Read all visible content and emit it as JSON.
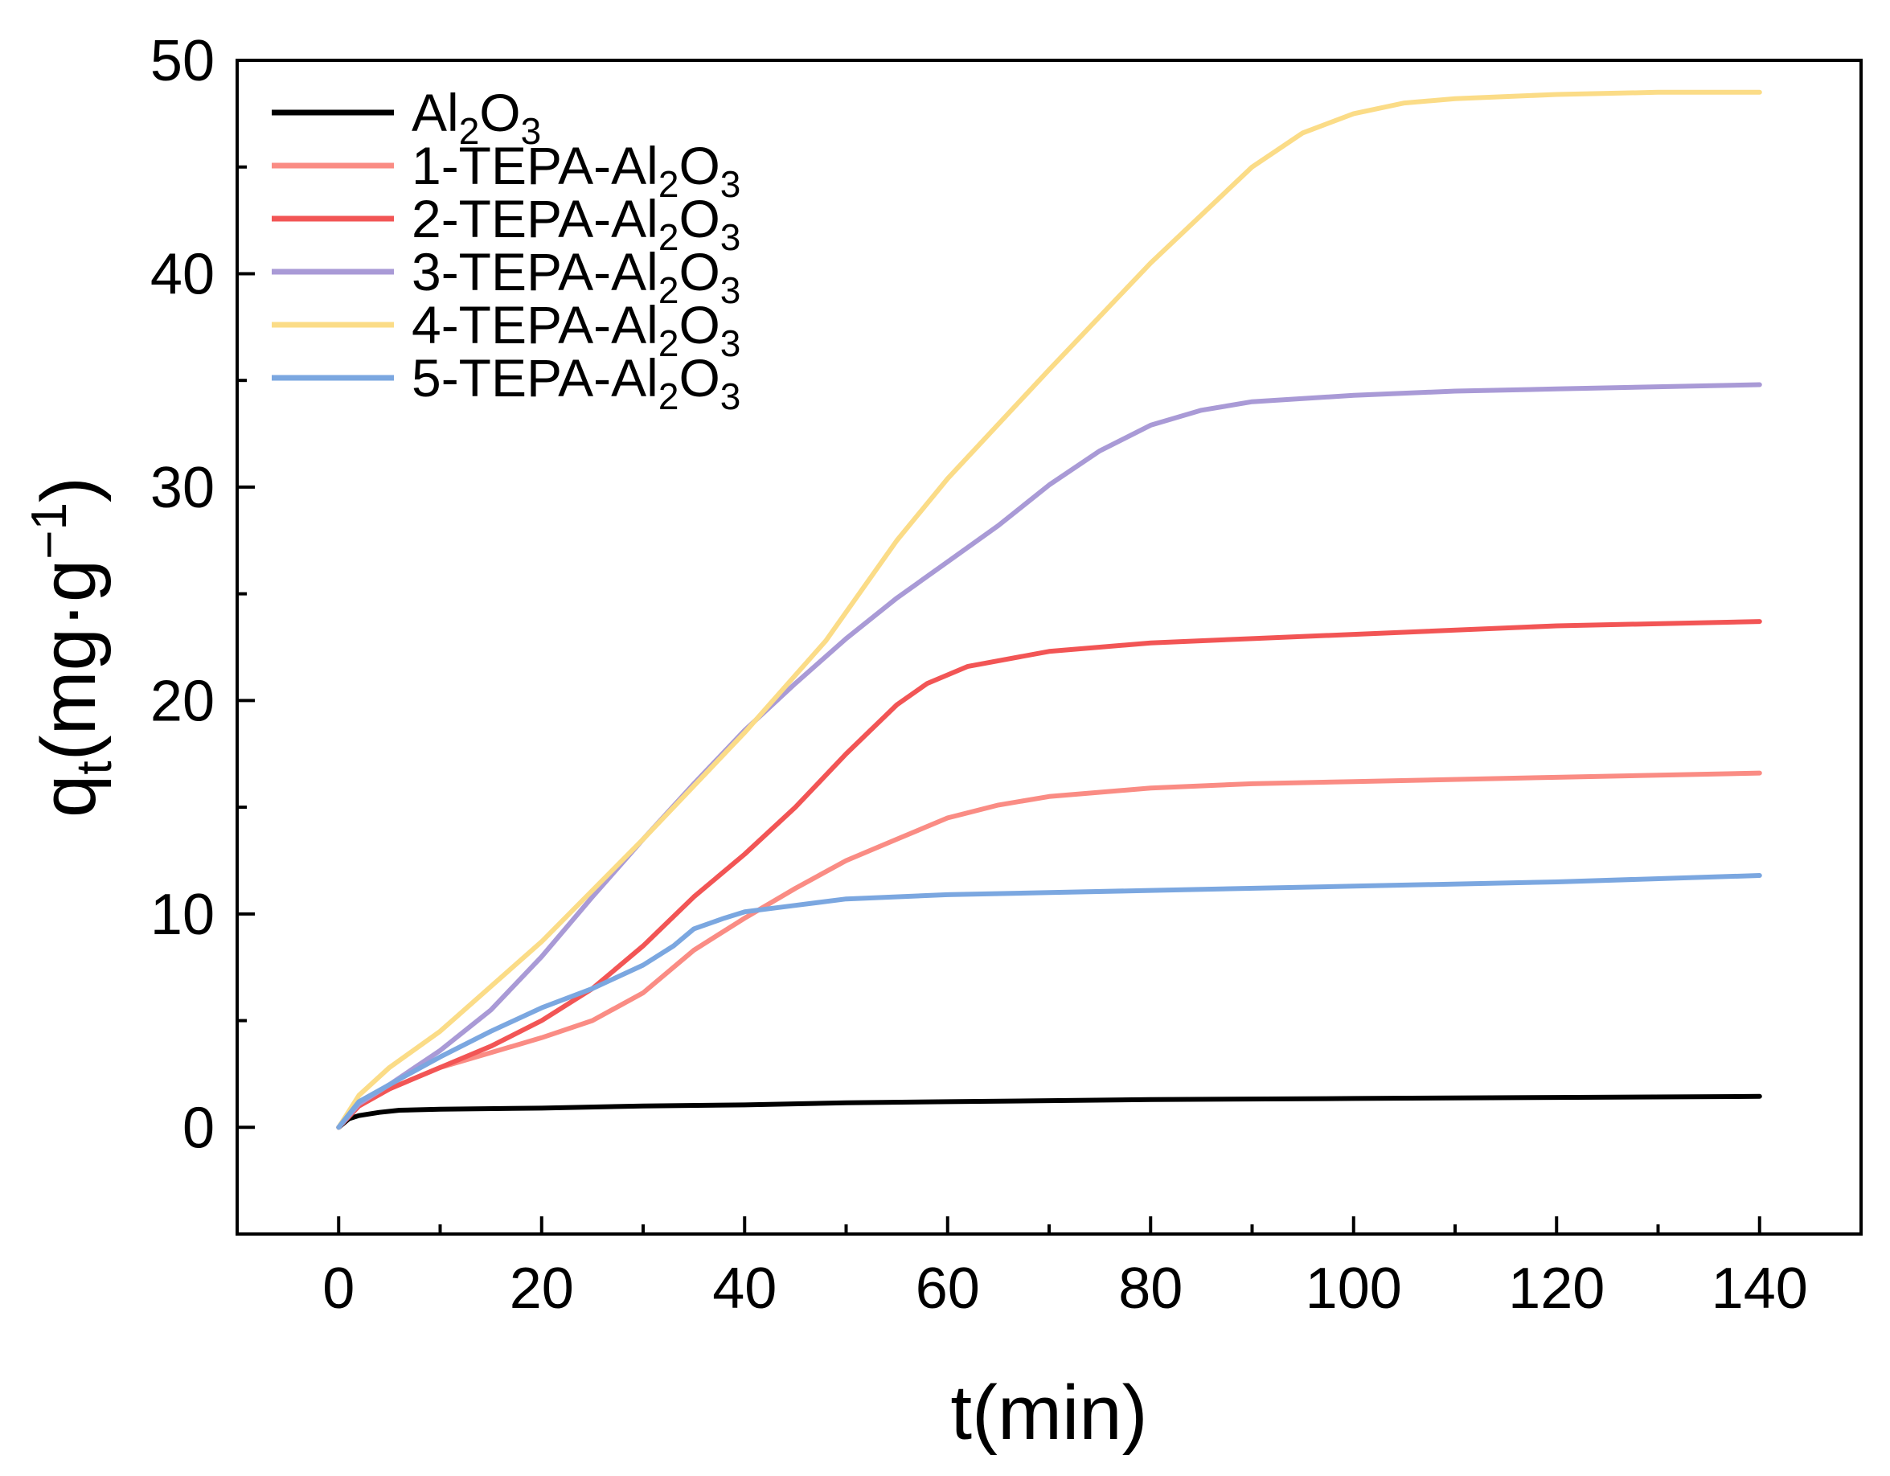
{
  "chart_data": {
    "type": "line",
    "title": "",
    "xlabel": "t(min)",
    "ylabel": {
      "base": "q",
      "sub": "t",
      "unit_open": "(mg·g",
      "sup": "−1",
      "unit_close": ")"
    },
    "xlim": [
      -10,
      150
    ],
    "ylim": [
      -5,
      50
    ],
    "xticks": [
      0,
      20,
      40,
      60,
      80,
      100,
      120,
      140
    ],
    "yticks": [
      0,
      10,
      20,
      30,
      40,
      50
    ],
    "xtick_labels": [
      "0",
      "20",
      "40",
      "60",
      "80",
      "100",
      "120",
      "140"
    ],
    "ytick_labels": [
      "0",
      "10",
      "20",
      "30",
      "40",
      "50"
    ],
    "legend_position": "top-left",
    "series": [
      {
        "name": "Al2O3",
        "label_parts": {
          "pre": "Al",
          "sub1": "2",
          "mid": "O",
          "sub2": "3"
        },
        "color": "#000000",
        "x": [
          0,
          1,
          2,
          4,
          6,
          10,
          20,
          30,
          40,
          50,
          60,
          70,
          80,
          100,
          120,
          140
        ],
        "y": [
          0,
          0.4,
          0.55,
          0.7,
          0.8,
          0.85,
          0.9,
          1.0,
          1.05,
          1.15,
          1.2,
          1.25,
          1.3,
          1.35,
          1.4,
          1.45
        ]
      },
      {
        "name": "1-TEPA-Al2O3",
        "label_parts": {
          "pre": "1-TEPA-Al",
          "sub1": "2",
          "mid": "O",
          "sub2": "3"
        },
        "color": "#fa8c84",
        "x": [
          0,
          2,
          5,
          10,
          15,
          20,
          25,
          30,
          35,
          40,
          45,
          50,
          55,
          60,
          65,
          70,
          80,
          90,
          100,
          120,
          140
        ],
        "y": [
          0,
          1.0,
          1.8,
          2.8,
          3.5,
          4.2,
          5.0,
          6.3,
          8.3,
          9.8,
          11.2,
          12.5,
          13.5,
          14.5,
          15.1,
          15.5,
          15.9,
          16.1,
          16.2,
          16.4,
          16.6
        ]
      },
      {
        "name": "2-TEPA-Al2O3",
        "label_parts": {
          "pre": "2-TEPA-Al",
          "sub1": "2",
          "mid": "O",
          "sub2": "3"
        },
        "color": "#f25555",
        "x": [
          0,
          2,
          5,
          10,
          15,
          20,
          25,
          30,
          35,
          40,
          45,
          50,
          55,
          58,
          62,
          70,
          80,
          90,
          100,
          120,
          140
        ],
        "y": [
          0,
          1.0,
          1.8,
          2.8,
          3.8,
          5.0,
          6.5,
          8.5,
          10.8,
          12.8,
          15.0,
          17.5,
          19.8,
          20.8,
          21.6,
          22.3,
          22.7,
          22.9,
          23.1,
          23.5,
          23.7
        ]
      },
      {
        "name": "3-TEPA-Al2O3",
        "label_parts": {
          "pre": "3-TEPA-Al",
          "sub1": "2",
          "mid": "O",
          "sub2": "3"
        },
        "color": "#a99ad6",
        "x": [
          0,
          2,
          5,
          10,
          15,
          20,
          25,
          30,
          35,
          40,
          45,
          50,
          55,
          60,
          65,
          70,
          75,
          80,
          85,
          90,
          100,
          110,
          120,
          140
        ],
        "y": [
          0,
          1.1,
          2.0,
          3.6,
          5.5,
          8.0,
          10.8,
          13.5,
          16.1,
          18.6,
          20.8,
          22.9,
          24.8,
          26.5,
          28.2,
          30.1,
          31.7,
          32.9,
          33.6,
          34.0,
          34.3,
          34.5,
          34.6,
          34.8
        ]
      },
      {
        "name": "4-TEPA-Al2O3",
        "label_parts": {
          "pre": "4-TEPA-Al",
          "sub1": "2",
          "mid": "O",
          "sub2": "3"
        },
        "color": "#fbdc87",
        "x": [
          0,
          2,
          5,
          10,
          20,
          30,
          40,
          48,
          55,
          60,
          70,
          80,
          90,
          95,
          100,
          105,
          110,
          120,
          130,
          140
        ],
        "y": [
          0,
          1.5,
          2.8,
          4.5,
          8.7,
          13.5,
          18.5,
          22.8,
          27.5,
          30.4,
          35.5,
          40.5,
          45.0,
          46.6,
          47.5,
          48.0,
          48.2,
          48.4,
          48.5,
          48.5
        ]
      },
      {
        "name": "5-TEPA-Al2O3",
        "label_parts": {
          "pre": "5-TEPA-Al",
          "sub1": "2",
          "mid": "O",
          "sub2": "3"
        },
        "color": "#7ba7e0",
        "x": [
          0,
          2,
          5,
          10,
          15,
          20,
          25,
          30,
          33,
          35,
          38,
          40,
          45,
          50,
          60,
          70,
          80,
          100,
          120,
          140
        ],
        "y": [
          0,
          1.2,
          2.0,
          3.3,
          4.5,
          5.6,
          6.5,
          7.6,
          8.5,
          9.3,
          9.8,
          10.1,
          10.4,
          10.7,
          10.9,
          11.0,
          11.1,
          11.3,
          11.5,
          11.8
        ]
      }
    ]
  }
}
